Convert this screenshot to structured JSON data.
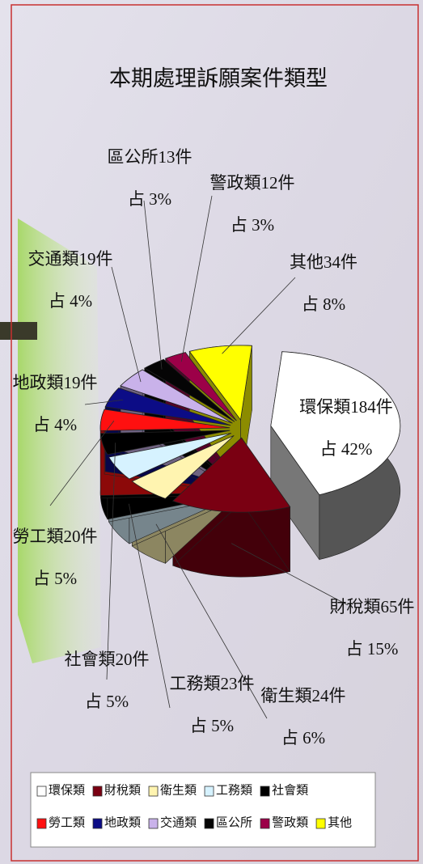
{
  "chart_data": {
    "type": "pie",
    "title": "本期處理訴願案件類型",
    "categories": [
      "環保類",
      "財稅類",
      "衛生類",
      "工務類",
      "社會類",
      "勞工類",
      "地政類",
      "交通類",
      "區公所",
      "警政類",
      "其他"
    ],
    "values": [
      184,
      65,
      24,
      23,
      20,
      20,
      19,
      19,
      13,
      12,
      34
    ],
    "value_labels": [
      "環保類184件",
      "財稅類65件",
      "衛生類24件",
      "工務類23件",
      "社會類20件",
      "勞工類20件",
      "地政類19件",
      "交通類19件",
      "區公所13件",
      "警政類12件",
      "其他34件"
    ],
    "percents": [
      42,
      15,
      6,
      5,
      5,
      5,
      4,
      4,
      3,
      3,
      8
    ],
    "percent_labels": [
      "占 42%",
      "占 15%",
      "占 6%",
      "占 5%",
      "占 5%",
      "占 5%",
      "占 4%",
      "占 4%",
      "占 3%",
      "占 3%",
      "占 8%"
    ],
    "colors": [
      "#ffffff",
      "#7a0012",
      "#fff4b0",
      "#d6f2ff",
      "#000000",
      "#ff1010",
      "#0c0c86",
      "#c9b2ea",
      "#050505",
      "#9c0048",
      "#ffff00"
    ],
    "legend": "bottom"
  }
}
